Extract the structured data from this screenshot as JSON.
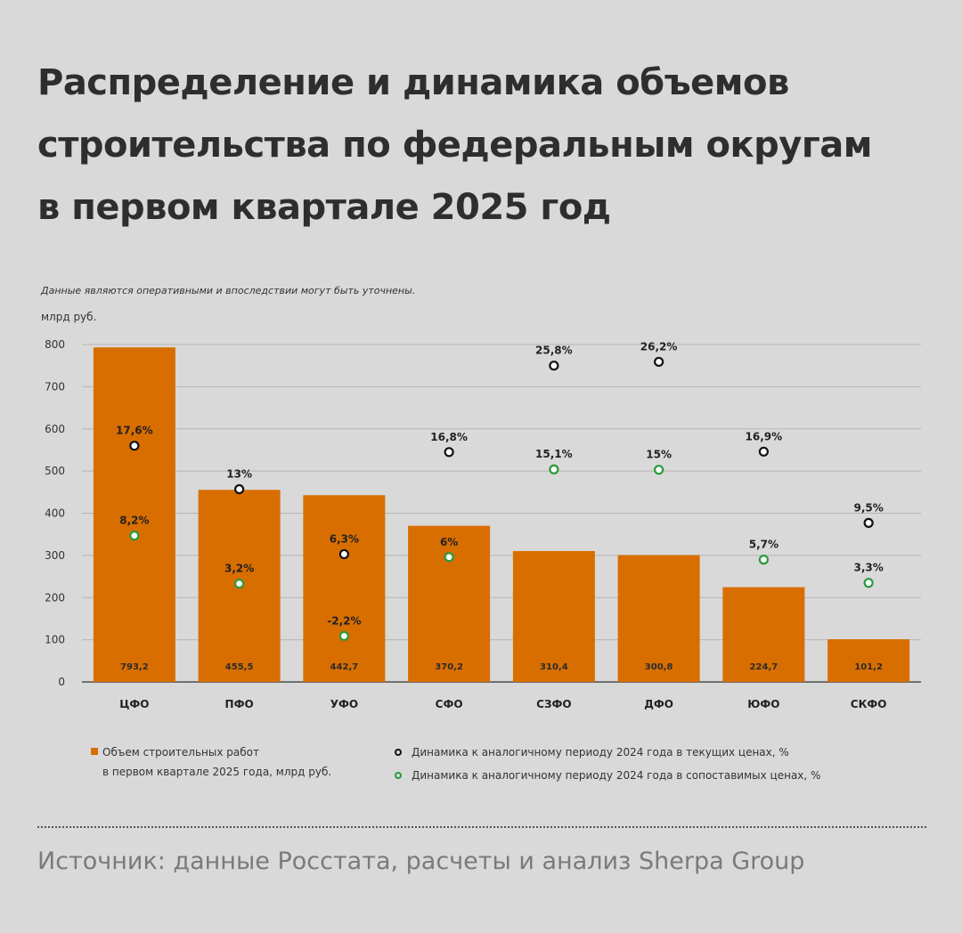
{
  "title_lines": [
    "Распределение и динамика объемов",
    "строительства по федеральным округам",
    "в первом квартале 2025 год"
  ],
  "note": "Данные являются оперативными и впоследствии могут быть уточнены.",
  "unit": "млрд руб.",
  "legend": {
    "volume_line1": "Объем строительных работ",
    "volume_line2": "в первом квартале 2025 года, млрд руб.",
    "current_prices": "Динамика к аналогичному периоду 2024 года в текущих ценах, %",
    "comparable_prices": "Динамика к аналогичному периоду 2024 года в сопоставимых ценах, %"
  },
  "source": "Источник: данные Росстата, расчеты и анализ Sherpa Group",
  "colors": {
    "bar": "#d96e00",
    "current_marker": "#111111",
    "comparable_marker": "#2b9a3a",
    "grid": "#b5b5b5"
  },
  "chart_data": {
    "type": "bar",
    "categories": [
      "ЦФО",
      "ПФО",
      "УФО",
      "СФО",
      "СЗФО",
      "ДФО",
      "ЮФО",
      "СКФО"
    ],
    "ylim": [
      0,
      800
    ],
    "yticks": [
      0,
      100,
      200,
      300,
      400,
      500,
      600,
      700,
      800
    ],
    "grid": true,
    "series": [
      {
        "name": "Объем строительных работ в первом квартале 2025 года, млрд руб.",
        "kind": "bar",
        "values": [
          793.2,
          455.5,
          442.7,
          370.2,
          310.4,
          300.8,
          224.7,
          101.2
        ],
        "labels": [
          "793,2",
          "455,5",
          "442,7",
          "370,2",
          "310,4",
          "300,8",
          "224,7",
          "101,2"
        ]
      },
      {
        "name": "Динамика к аналогичному периоду 2024 года в текущих ценах, %",
        "kind": "marker",
        "values": [
          17.6,
          13,
          6.3,
          16.8,
          25.8,
          26.2,
          16.9,
          9.5
        ],
        "positions": [
          560,
          457,
          303,
          545,
          750,
          759,
          546,
          377
        ],
        "labels": [
          "17,6%",
          "13%",
          "6,3%",
          "16,8%",
          "25,8%",
          "26,2%",
          "16,9%",
          "9,5%"
        ]
      },
      {
        "name": "Динамика к аналогичному периоду 2024 года в сопоставимых ценах, %",
        "kind": "marker",
        "values": [
          8.2,
          3.2,
          -2.2,
          6,
          15.1,
          15,
          5.7,
          3.3
        ],
        "positions": [
          347,
          233,
          109,
          296,
          504,
          503,
          290,
          235
        ],
        "labels": [
          "8,2%",
          "3,2%",
          "-2,2%",
          "6%",
          "15,1%",
          "15%",
          "5,7%",
          "3,3%"
        ]
      }
    ]
  }
}
